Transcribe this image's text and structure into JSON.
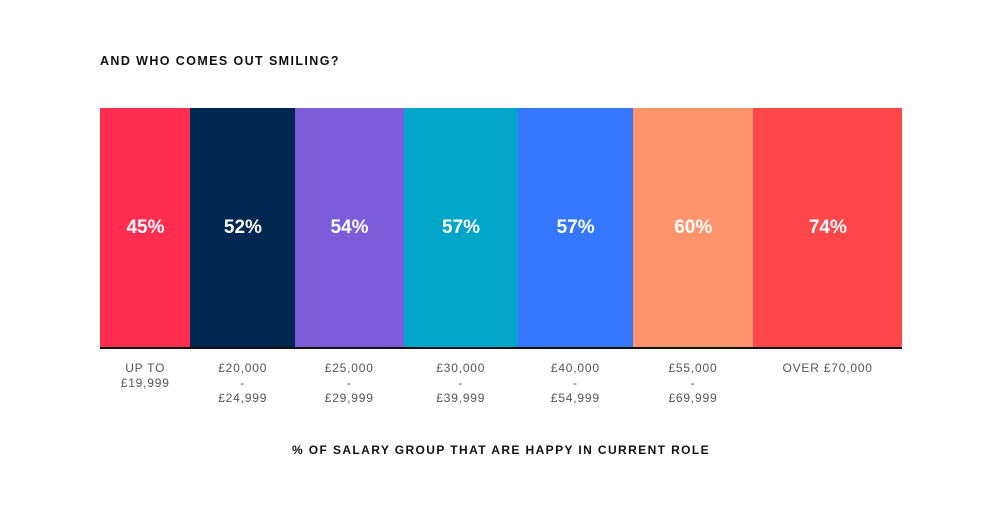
{
  "chart_data": {
    "type": "bar",
    "title": "AND WHO COMES OUT SMILING?",
    "xlabel": "% OF SALARY GROUP THAT ARE HAPPY IN CURRENT ROLE",
    "ylabel": "",
    "width_encodes_value": true,
    "categories": [
      [
        "UP TO",
        "£19,999"
      ],
      [
        "£20,000",
        "-",
        "£24,999"
      ],
      [
        "£25,000",
        "-",
        "£29,999"
      ],
      [
        "£30,000",
        "-",
        "£39,999"
      ],
      [
        "£40,000",
        "-",
        "£54,999"
      ],
      [
        "£55,000",
        "-",
        "£69,999"
      ],
      [
        "OVER £70,000"
      ]
    ],
    "values": [
      45,
      52,
      54,
      57,
      57,
      60,
      74
    ],
    "value_labels": [
      "45%",
      "52%",
      "54%",
      "57%",
      "57%",
      "60%",
      "74%"
    ],
    "colors": [
      "#FF2D50",
      "#002752",
      "#7B5DD9",
      "#00A5C9",
      "#3577FF",
      "#FF936C",
      "#FF474B"
    ]
  }
}
